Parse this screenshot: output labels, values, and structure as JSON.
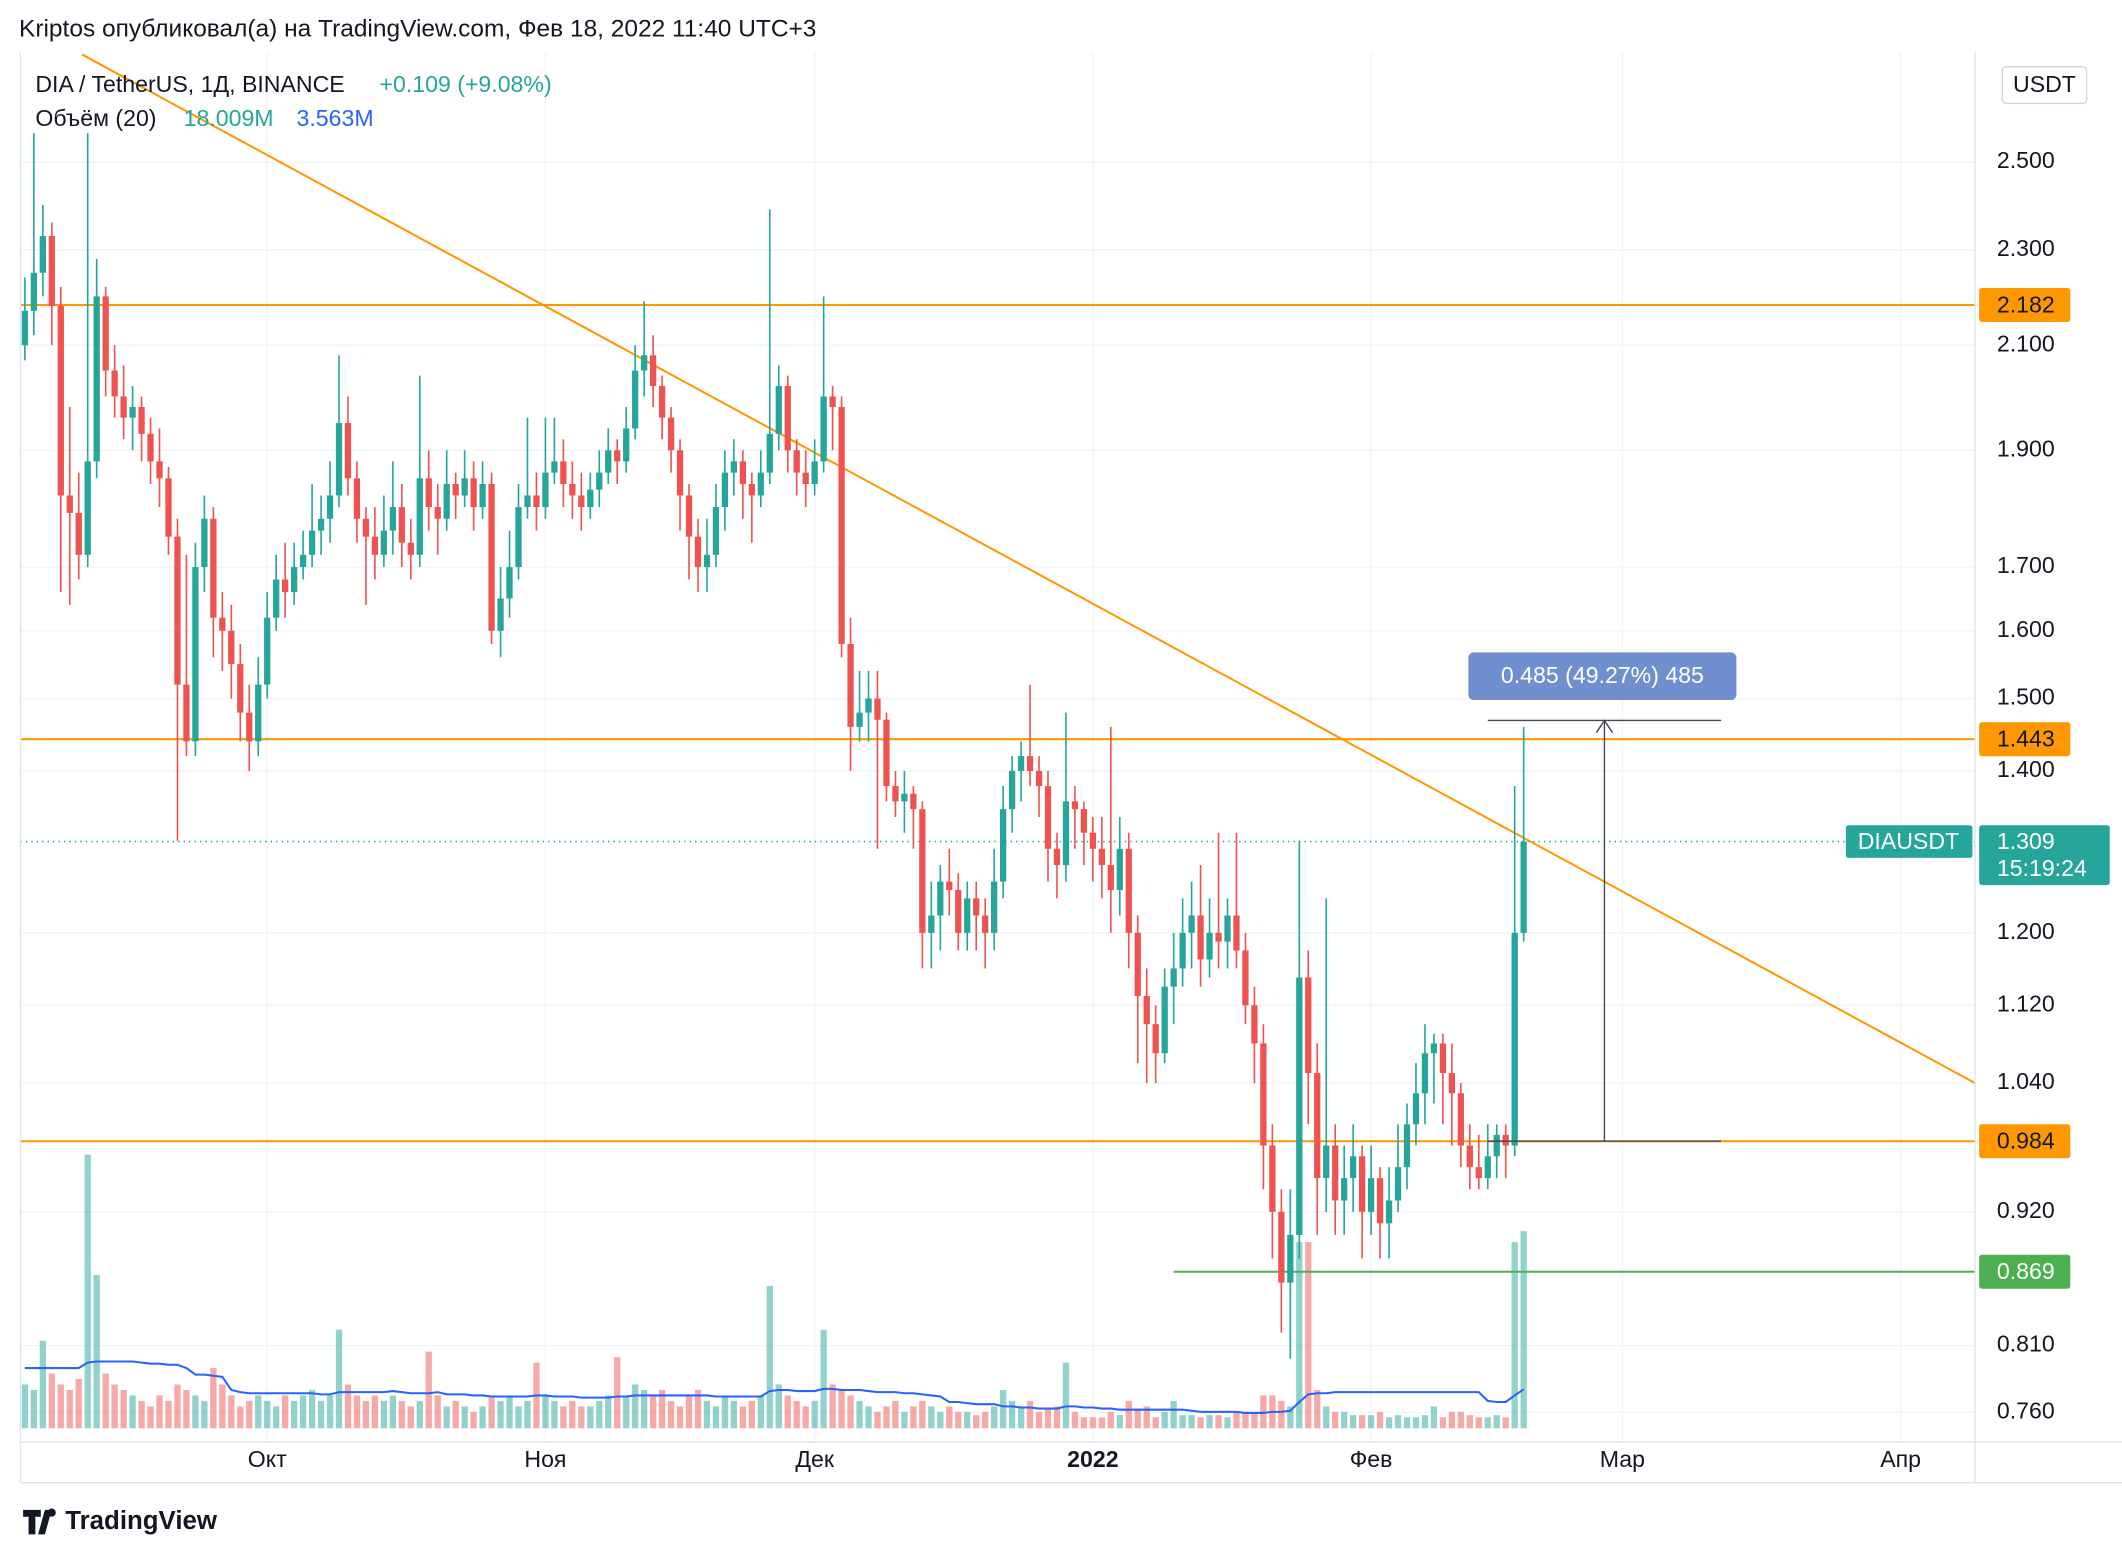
{
  "header": {
    "published": "Kriptos опубликовал(а) на TradingView.com, Фев 18, 2022 11:40 UTC+3",
    "symbol": "DIA / TetherUS, 1Д, BINANCE",
    "change": "+0.109 (+9.08%)",
    "volume_indicator": "Объём (20)",
    "volume_value": "18.009M",
    "volume_ma_value": "3.563M",
    "currency": "USDT",
    "logo": "TradingView"
  },
  "chart_data": {
    "type": "candlestick",
    "ohlc": [
      [
        2.1,
        2.24,
        2.07,
        2.17
      ],
      [
        2.17,
        2.57,
        2.12,
        2.25
      ],
      [
        2.25,
        2.4,
        2.2,
        2.33
      ],
      [
        2.33,
        2.36,
        2.1,
        2.18
      ],
      [
        2.18,
        2.22,
        1.66,
        1.82
      ],
      [
        1.82,
        1.98,
        1.64,
        1.79
      ],
      [
        1.79,
        1.86,
        1.68,
        1.72
      ],
      [
        1.72,
        2.57,
        1.7,
        1.88
      ],
      [
        1.88,
        2.28,
        1.85,
        2.2
      ],
      [
        2.2,
        2.22,
        2.0,
        2.05
      ],
      [
        2.05,
        2.1,
        1.96,
        2.0
      ],
      [
        2.0,
        2.06,
        1.92,
        1.96
      ],
      [
        1.96,
        2.02,
        1.9,
        1.98
      ],
      [
        1.98,
        2.0,
        1.88,
        1.93
      ],
      [
        1.93,
        1.96,
        1.84,
        1.88
      ],
      [
        1.88,
        1.94,
        1.8,
        1.85
      ],
      [
        1.85,
        1.87,
        1.72,
        1.75
      ],
      [
        1.75,
        1.78,
        1.31,
        1.52
      ],
      [
        1.52,
        1.72,
        1.42,
        1.44
      ],
      [
        1.44,
        1.74,
        1.42,
        1.7
      ],
      [
        1.7,
        1.82,
        1.66,
        1.78
      ],
      [
        1.78,
        1.8,
        1.56,
        1.62
      ],
      [
        1.62,
        1.66,
        1.54,
        1.6
      ],
      [
        1.6,
        1.64,
        1.5,
        1.55
      ],
      [
        1.55,
        1.58,
        1.44,
        1.48
      ],
      [
        1.48,
        1.52,
        1.4,
        1.44
      ],
      [
        1.44,
        1.56,
        1.42,
        1.52
      ],
      [
        1.52,
        1.66,
        1.5,
        1.62
      ],
      [
        1.62,
        1.72,
        1.6,
        1.68
      ],
      [
        1.68,
        1.74,
        1.62,
        1.66
      ],
      [
        1.66,
        1.74,
        1.64,
        1.7
      ],
      [
        1.7,
        1.76,
        1.68,
        1.72
      ],
      [
        1.72,
        1.84,
        1.7,
        1.76
      ],
      [
        1.76,
        1.82,
        1.72,
        1.78
      ],
      [
        1.78,
        1.88,
        1.74,
        1.82
      ],
      [
        1.82,
        2.08,
        1.8,
        1.95
      ],
      [
        1.95,
        2.0,
        1.82,
        1.85
      ],
      [
        1.85,
        1.88,
        1.74,
        1.78
      ],
      [
        1.78,
        1.8,
        1.64,
        1.75
      ],
      [
        1.75,
        1.8,
        1.68,
        1.72
      ],
      [
        1.72,
        1.82,
        1.7,
        1.76
      ],
      [
        1.76,
        1.88,
        1.72,
        1.8
      ],
      [
        1.8,
        1.84,
        1.7,
        1.74
      ],
      [
        1.74,
        1.78,
        1.68,
        1.72
      ],
      [
        1.72,
        2.04,
        1.7,
        1.85
      ],
      [
        1.85,
        1.9,
        1.76,
        1.8
      ],
      [
        1.8,
        1.84,
        1.72,
        1.78
      ],
      [
        1.78,
        1.9,
        1.76,
        1.84
      ],
      [
        1.84,
        1.86,
        1.78,
        1.82
      ],
      [
        1.82,
        1.9,
        1.8,
        1.85
      ],
      [
        1.85,
        1.88,
        1.76,
        1.8
      ],
      [
        1.8,
        1.88,
        1.78,
        1.84
      ],
      [
        1.84,
        1.86,
        1.58,
        1.6
      ],
      [
        1.6,
        1.7,
        1.56,
        1.65
      ],
      [
        1.65,
        1.76,
        1.62,
        1.7
      ],
      [
        1.7,
        1.84,
        1.68,
        1.8
      ],
      [
        1.8,
        1.96,
        1.78,
        1.82
      ],
      [
        1.82,
        1.86,
        1.76,
        1.8
      ],
      [
        1.8,
        1.96,
        1.78,
        1.86
      ],
      [
        1.86,
        1.96,
        1.84,
        1.88
      ],
      [
        1.88,
        1.92,
        1.8,
        1.84
      ],
      [
        1.84,
        1.88,
        1.78,
        1.82
      ],
      [
        1.82,
        1.86,
        1.76,
        1.8
      ],
      [
        1.8,
        1.86,
        1.78,
        1.83
      ],
      [
        1.83,
        1.9,
        1.8,
        1.86
      ],
      [
        1.86,
        1.94,
        1.84,
        1.9
      ],
      [
        1.9,
        1.92,
        1.84,
        1.88
      ],
      [
        1.88,
        1.98,
        1.86,
        1.94
      ],
      [
        1.94,
        2.1,
        1.92,
        2.05
      ],
      [
        2.05,
        2.19,
        2.0,
        2.08
      ],
      [
        2.08,
        2.12,
        1.98,
        2.02
      ],
      [
        2.02,
        2.04,
        1.92,
        1.96
      ],
      [
        1.96,
        1.98,
        1.86,
        1.9
      ],
      [
        1.9,
        1.92,
        1.76,
        1.82
      ],
      [
        1.82,
        1.84,
        1.68,
        1.75
      ],
      [
        1.75,
        1.78,
        1.66,
        1.7
      ],
      [
        1.7,
        1.78,
        1.66,
        1.72
      ],
      [
        1.72,
        1.84,
        1.7,
        1.8
      ],
      [
        1.8,
        1.9,
        1.76,
        1.86
      ],
      [
        1.86,
        1.92,
        1.82,
        1.88
      ],
      [
        1.88,
        1.9,
        1.78,
        1.84
      ],
      [
        1.84,
        1.86,
        1.74,
        1.82
      ],
      [
        1.82,
        1.9,
        1.8,
        1.86
      ],
      [
        1.86,
        2.39,
        1.84,
        1.93
      ],
      [
        1.93,
        2.06,
        1.9,
        2.02
      ],
      [
        2.02,
        2.04,
        1.86,
        1.9
      ],
      [
        1.9,
        1.92,
        1.82,
        1.86
      ],
      [
        1.86,
        1.9,
        1.8,
        1.84
      ],
      [
        1.84,
        1.92,
        1.82,
        1.88
      ],
      [
        1.88,
        2.2,
        1.86,
        2.0
      ],
      [
        2.0,
        2.02,
        1.9,
        1.98
      ],
      [
        1.98,
        2.0,
        1.56,
        1.58
      ],
      [
        1.58,
        1.62,
        1.4,
        1.46
      ],
      [
        1.46,
        1.54,
        1.44,
        1.48
      ],
      [
        1.48,
        1.54,
        1.44,
        1.5
      ],
      [
        1.5,
        1.54,
        1.3,
        1.47
      ],
      [
        1.47,
        1.48,
        1.36,
        1.38
      ],
      [
        1.38,
        1.4,
        1.34,
        1.36
      ],
      [
        1.36,
        1.4,
        1.32,
        1.37
      ],
      [
        1.37,
        1.38,
        1.3,
        1.35
      ],
      [
        1.35,
        1.36,
        1.16,
        1.2
      ],
      [
        1.2,
        1.26,
        1.16,
        1.22
      ],
      [
        1.22,
        1.28,
        1.18,
        1.26
      ],
      [
        1.26,
        1.3,
        1.22,
        1.25
      ],
      [
        1.25,
        1.27,
        1.18,
        1.2
      ],
      [
        1.2,
        1.26,
        1.18,
        1.24
      ],
      [
        1.24,
        1.26,
        1.18,
        1.22
      ],
      [
        1.22,
        1.24,
        1.16,
        1.2
      ],
      [
        1.2,
        1.3,
        1.18,
        1.26
      ],
      [
        1.26,
        1.38,
        1.24,
        1.35
      ],
      [
        1.35,
        1.42,
        1.32,
        1.4
      ],
      [
        1.4,
        1.44,
        1.36,
        1.42
      ],
      [
        1.42,
        1.52,
        1.38,
        1.4
      ],
      [
        1.4,
        1.42,
        1.34,
        1.38
      ],
      [
        1.38,
        1.4,
        1.26,
        1.3
      ],
      [
        1.3,
        1.32,
        1.24,
        1.28
      ],
      [
        1.28,
        1.48,
        1.26,
        1.36
      ],
      [
        1.36,
        1.38,
        1.3,
        1.35
      ],
      [
        1.35,
        1.36,
        1.28,
        1.32
      ],
      [
        1.32,
        1.34,
        1.26,
        1.3
      ],
      [
        1.3,
        1.34,
        1.24,
        1.28
      ],
      [
        1.28,
        1.46,
        1.2,
        1.25
      ],
      [
        1.25,
        1.34,
        1.22,
        1.3
      ],
      [
        1.3,
        1.32,
        1.16,
        1.2
      ],
      [
        1.2,
        1.22,
        1.06,
        1.13
      ],
      [
        1.13,
        1.16,
        1.04,
        1.1
      ],
      [
        1.1,
        1.12,
        1.04,
        1.07
      ],
      [
        1.07,
        1.16,
        1.06,
        1.14
      ],
      [
        1.14,
        1.2,
        1.1,
        1.16
      ],
      [
        1.16,
        1.24,
        1.14,
        1.2
      ],
      [
        1.2,
        1.26,
        1.16,
        1.22
      ],
      [
        1.22,
        1.28,
        1.14,
        1.17
      ],
      [
        1.17,
        1.24,
        1.15,
        1.2
      ],
      [
        1.2,
        1.32,
        1.16,
        1.19
      ],
      [
        1.19,
        1.24,
        1.16,
        1.22
      ],
      [
        1.22,
        1.32,
        1.16,
        1.18
      ],
      [
        1.18,
        1.2,
        1.1,
        1.12
      ],
      [
        1.12,
        1.14,
        1.04,
        1.08
      ],
      [
        1.08,
        1.1,
        0.94,
        0.98
      ],
      [
        0.98,
        1.0,
        0.88,
        0.92
      ],
      [
        0.92,
        0.94,
        0.82,
        0.86
      ],
      [
        0.86,
        0.94,
        0.8,
        0.9
      ],
      [
        0.9,
        1.31,
        0.88,
        1.15
      ],
      [
        1.15,
        1.18,
        1.0,
        1.05
      ],
      [
        1.05,
        1.08,
        0.9,
        0.95
      ],
      [
        0.95,
        1.24,
        0.92,
        0.98
      ],
      [
        0.98,
        1.0,
        0.9,
        0.93
      ],
      [
        0.93,
        0.98,
        0.9,
        0.95
      ],
      [
        0.95,
        1.0,
        0.92,
        0.97
      ],
      [
        0.97,
        0.98,
        0.88,
        0.92
      ],
      [
        0.92,
        0.98,
        0.9,
        0.95
      ],
      [
        0.95,
        0.96,
        0.88,
        0.91
      ],
      [
        0.91,
        0.96,
        0.88,
        0.93
      ],
      [
        0.93,
        1.0,
        0.92,
        0.96
      ],
      [
        0.96,
        1.02,
        0.94,
        1.0
      ],
      [
        1.0,
        1.06,
        0.98,
        1.03
      ],
      [
        1.03,
        1.1,
        1.0,
        1.07
      ],
      [
        1.07,
        1.09,
        1.02,
        1.08
      ],
      [
        1.08,
        1.09,
        1.0,
        1.05
      ],
      [
        1.05,
        1.08,
        0.98,
        1.03
      ],
      [
        1.03,
        1.04,
        0.96,
        0.98
      ],
      [
        0.98,
        1.0,
        0.94,
        0.96
      ],
      [
        0.96,
        0.99,
        0.94,
        0.95
      ],
      [
        0.95,
        1.0,
        0.94,
        0.97
      ],
      [
        0.97,
        1.0,
        0.95,
        0.99
      ],
      [
        0.99,
        1.0,
        0.95,
        0.98
      ],
      [
        0.98,
        1.38,
        0.97,
        1.2
      ],
      [
        1.2,
        1.46,
        1.19,
        1.309
      ]
    ],
    "volume": [
      4,
      3.5,
      8,
      5,
      4,
      3.5,
      4.5,
      25,
      14,
      5,
      4,
      3.5,
      3,
      2.5,
      2,
      3,
      2.5,
      4,
      3.5,
      3,
      2.5,
      5.5,
      4,
      3,
      2,
      2.5,
      3,
      2.5,
      2,
      3,
      2.5,
      3,
      3.5,
      2.5,
      3,
      9,
      4,
      3,
      2.5,
      3,
      2.5,
      3,
      2.5,
      2,
      2.5,
      7,
      3,
      2,
      2.5,
      2,
      1.5,
      2,
      3,
      2.5,
      3,
      2,
      2.5,
      6,
      3,
      2.5,
      2,
      2.5,
      2,
      2,
      2.5,
      3,
      6.5,
      3,
      4,
      3.5,
      3,
      3.5,
      2.5,
      2,
      3,
      3.5,
      2.5,
      2,
      3,
      2.5,
      2,
      2.5,
      3,
      13,
      4,
      3,
      2.5,
      2,
      2.5,
      9,
      4,
      3.5,
      3,
      2.5,
      2,
      1.5,
      2,
      2.5,
      1.5,
      2,
      2.5,
      2,
      1.5,
      2,
      1.5,
      1.5,
      1.2,
      1.5,
      2,
      3.5,
      2.5,
      2,
      2.5,
      1.5,
      1.8,
      2,
      6,
      1.5,
      1,
      1,
      1,
      1.5,
      1.2,
      2.5,
      1.8,
      2,
      1,
      1.5,
      2.5,
      1.2,
      1.2,
      1,
      1.2,
      1.2,
      1,
      1.5,
      1.5,
      1.5,
      3,
      3,
      2.5,
      2,
      17,
      17,
      3.5,
      2,
      1.5,
      1.5,
      1.2,
      1.2,
      1.2,
      1.5,
      1,
      1.2,
      1,
      1,
      1.2,
      2,
      1,
      1.5,
      1.5,
      1.2,
      1,
      1,
      1.2,
      1,
      17,
      18.009
    ],
    "volume_ma": [
      5.5,
      5.5,
      5.5,
      5.5,
      5.5,
      5.5,
      5.5,
      6,
      6.1,
      6.1,
      6.1,
      6.1,
      6.1,
      6.0,
      5.9,
      5.9,
      5.8,
      5.8,
      5.5,
      4.9,
      4.9,
      4.8,
      4.7,
      3.5,
      3.3,
      3.2,
      3.2,
      3.2,
      3.2,
      3.2,
      3.2,
      3.2,
      3.2,
      3.1,
      3.1,
      3.3,
      3.3,
      3.3,
      3.3,
      3.3,
      3.3,
      3.4,
      3.3,
      3.2,
      3.2,
      3.2,
      3.3,
      3.1,
      3.1,
      3.1,
      3.0,
      3.0,
      2.9,
      2.9,
      2.9,
      2.9,
      2.9,
      3.0,
      3.0,
      2.9,
      2.9,
      2.9,
      2.8,
      2.8,
      2.8,
      2.8,
      2.9,
      2.9,
      3.0,
      3.0,
      3.0,
      3.0,
      3.0,
      3.0,
      3.0,
      3.0,
      3.0,
      2.9,
      2.9,
      2.9,
      2.9,
      2.9,
      2.9,
      3.4,
      3.5,
      3.5,
      3.4,
      3.4,
      3.4,
      3.6,
      3.6,
      3.5,
      3.5,
      3.5,
      3.4,
      3.3,
      3.3,
      3.3,
      3.2,
      3.2,
      3.1,
      3.0,
      2.9,
      2.4,
      2.4,
      2.3,
      2.2,
      2.2,
      2.2,
      2.0,
      2.0,
      1.9,
      1.9,
      1.8,
      1.8,
      1.8,
      2.0,
      2.0,
      1.9,
      1.9,
      1.8,
      1.8,
      1.7,
      1.7,
      1.7,
      1.7,
      1.7,
      1.7,
      1.7,
      1.7,
      1.6,
      1.5,
      1.5,
      1.5,
      1.5,
      1.5,
      1.4,
      1.4,
      1.4,
      1.5,
      1.5,
      1.6,
      2.4,
      3.1,
      3.2,
      3.2,
      3.3,
      3.3,
      3.3,
      3.3,
      3.3,
      3.3,
      3.3,
      3.3,
      3.3,
      3.3,
      3.3,
      3.3,
      3.3,
      3.3,
      3.3,
      3.3,
      3.3,
      2.5,
      2.4,
      2.4,
      3.0,
      3.563
    ],
    "up_color": "#26a69a",
    "down_color": "#ef5350",
    "ma_color": "#2962ff",
    "xlim": [
      -0.5,
      217.3
    ],
    "xticks": [
      {
        "value": 27,
        "label": "Окт"
      },
      {
        "value": 58,
        "label": "Ноя"
      },
      {
        "value": 88,
        "label": "Дек"
      },
      {
        "value": 119,
        "label": "2022"
      },
      {
        "value": 150,
        "label": "Фев"
      },
      {
        "value": 178,
        "label": "Мар"
      },
      {
        "value": 209,
        "label": "Апр"
      }
    ],
    "ylim": [
      0.739,
      2.77
    ],
    "log_y": true,
    "yticks": [
      {
        "value": 0.76,
        "label": "0.760"
      },
      {
        "value": 0.81,
        "label": "0.810"
      },
      {
        "value": 0.92,
        "label": "0.920"
      },
      {
        "value": 1.04,
        "label": "1.040"
      },
      {
        "value": 1.12,
        "label": "1.120"
      },
      {
        "value": 1.2,
        "label": "1.200"
      },
      {
        "value": 1.4,
        "label": "1.400"
      },
      {
        "value": 1.5,
        "label": "1.500"
      },
      {
        "value": 1.6,
        "label": "1.600"
      },
      {
        "value": 1.7,
        "label": "1.700"
      },
      {
        "value": 1.9,
        "label": "1.900"
      },
      {
        "value": 2.1,
        "label": "2.100"
      },
      {
        "value": 2.3,
        "label": "2.300"
      },
      {
        "value": 2.5,
        "label": "2.500"
      }
    ],
    "volume_lim": [
      0,
      40
    ],
    "grid": true,
    "levels": [
      {
        "value": 2.182,
        "color": "#ff9800",
        "text_color": "#131722"
      },
      {
        "value": 1.443,
        "color": "#ff9800",
        "text_color": "#131722"
      },
      {
        "value": 0.984,
        "color": "#ff9800",
        "text_color": "#131722"
      },
      {
        "value": 0.869,
        "color": "#4caf50",
        "text_color": "#ffffff",
        "x_start": 128
      }
    ],
    "trend_line": {
      "x": [
        6.36,
        217.3
      ],
      "y": [
        2.77,
        1.04
      ],
      "color": "#ff9800"
    },
    "last_price": {
      "name": "DIAUSDT",
      "value": 1.309,
      "countdown": "15:19:24",
      "color": "#26a69a"
    },
    "measure": {
      "from": 0.984,
      "to": 1.469,
      "x_start": 163,
      "x_end": 189,
      "label": "0.485 (49.27%) 485",
      "color": "#6f8fcf"
    }
  }
}
